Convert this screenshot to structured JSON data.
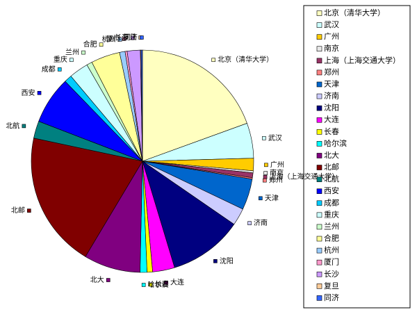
{
  "chart_data": {
    "type": "pie",
    "categories": [
      "北京（清华大学）",
      "武汉",
      "广州",
      "南京",
      "上海（上海交通大学）",
      "郑州",
      "天津",
      "济南",
      "沈阳",
      "大连",
      "长春",
      "哈尔滨",
      "北大",
      "北邮",
      "北航",
      "西安",
      "成都",
      "重庆",
      "兰州",
      "合肥",
      "杭州",
      "厦门",
      "长沙",
      "复旦",
      "同济"
    ],
    "values": [
      19.4,
      5.1,
      1.8,
      0.3,
      0.7,
      0.2,
      4.5,
      2.5,
      10.7,
      3.2,
      0.8,
      1.0,
      8.2,
      19.7,
      2.5,
      6.9,
      1.1,
      2.8,
      0.8,
      4.2,
      0.8,
      0.3,
      1.9,
      0.1,
      0.2
    ],
    "colors": [
      "#FFFFC0",
      "#CCFFFF",
      "#FFCC00",
      "#E8E8E8",
      "#993366",
      "#FF8080",
      "#0066CC",
      "#CCCCFF",
      "#000080",
      "#FF00FF",
      "#FFFF00",
      "#00FFFF",
      "#800080",
      "#800000",
      "#008080",
      "#0000FF",
      "#00CCFF",
      "#CCFFFF",
      "#CCFFCC",
      "#FFFF99",
      "#99CCFF",
      "#FF99CC",
      "#CC99FF",
      "#FFCC99",
      "#3366FF"
    ],
    "legend": "right"
  }
}
